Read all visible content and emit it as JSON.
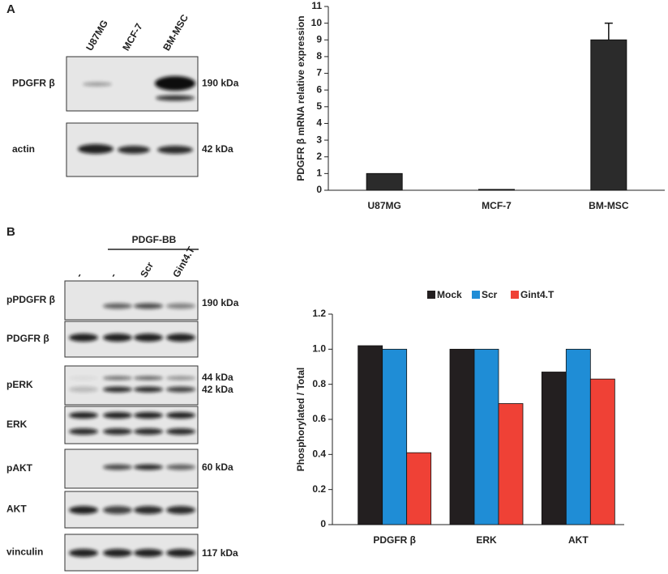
{
  "panel_a": {
    "label": "A",
    "lanes": [
      "U87MG",
      "MCF-7",
      "BM-MSC"
    ],
    "blots": [
      {
        "name": "PDGFR β",
        "sizes": [
          "190 kDa"
        ]
      },
      {
        "name": "actin",
        "sizes": [
          "42 kDa"
        ]
      }
    ]
  },
  "panel_b": {
    "label": "B",
    "treatment": "PDGF-BB",
    "lanes": [
      "-",
      "-",
      "Scr",
      "Gint4.T"
    ],
    "blots": [
      {
        "name": "pPDGFR β",
        "sizes": [
          "190 kDa"
        ]
      },
      {
        "name": "PDGFR β",
        "sizes": []
      },
      {
        "name": "pERK",
        "sizes": [
          "44 kDa",
          "42 kDa"
        ]
      },
      {
        "name": "ERK",
        "sizes": []
      },
      {
        "name": "pAKT",
        "sizes": [
          "60 kDa"
        ]
      },
      {
        "name": "AKT",
        "sizes": []
      },
      {
        "name": "vinculin",
        "sizes": [
          "117 kDa"
        ]
      }
    ]
  },
  "chart_data": [
    {
      "type": "bar",
      "y_label": "PDGFR β  mRNA relative expression",
      "categories": [
        "U87MG",
        "MCF-7",
        "BM-MSC"
      ],
      "values": [
        1,
        0.05,
        9
      ],
      "errors": [
        null,
        null,
        1
      ],
      "color": "#2b2b2b",
      "ylim": [
        0,
        11
      ],
      "yticks": [
        0,
        1,
        2,
        3,
        4,
        5,
        6,
        7,
        8,
        9,
        10,
        11
      ]
    },
    {
      "type": "grouped-bar",
      "y_label": "Phosphorylated / Total",
      "categories": [
        "PDGFR β",
        "ERK",
        "AKT"
      ],
      "series": [
        {
          "name": "Mock",
          "color": "#231f20",
          "values": [
            1.02,
            1.0,
            0.87
          ]
        },
        {
          "name": "Scr",
          "color": "#1f8dd6",
          "values": [
            1.0,
            1.0,
            1.0
          ]
        },
        {
          "name": "Gint4.T",
          "color": "#ef4136",
          "values": [
            0.41,
            0.69,
            0.83
          ]
        }
      ],
      "ylim": [
        0,
        1.2
      ],
      "yticks": [
        0,
        0.2,
        0.4,
        0.6,
        0.8,
        {
          "value": 1,
          "label": "1.0"
        },
        1.2
      ],
      "legend": "top"
    }
  ]
}
